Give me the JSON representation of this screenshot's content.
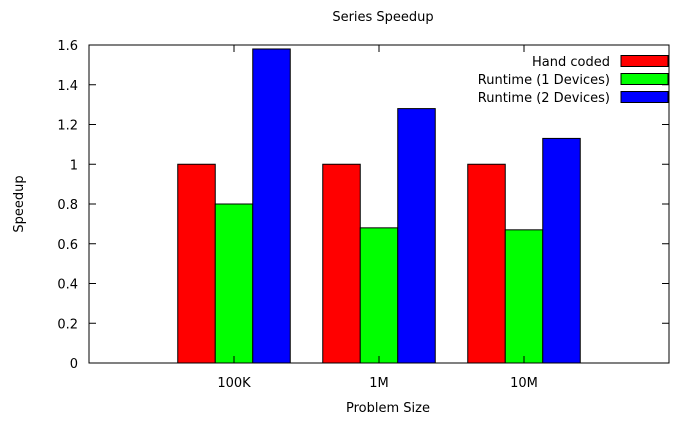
{
  "chart_data": {
    "type": "bar",
    "title": "Series Speedup",
    "xlabel": "Problem Size",
    "ylabel": "Speedup",
    "categories": [
      "100K",
      "1M",
      "10M"
    ],
    "ylim": [
      0,
      1.6
    ],
    "yticks": [
      0,
      0.2,
      0.4,
      0.6,
      0.8,
      1,
      1.2,
      1.4,
      1.6
    ],
    "ytick_labels": [
      "0",
      "0.2",
      "0.4",
      "0.6",
      "0.8",
      "1",
      "1.2",
      "1.4",
      "1.6"
    ],
    "grid": false,
    "legend_position": "top-right",
    "series": [
      {
        "name": "Hand coded",
        "color": "#ff0000",
        "values": [
          1.0,
          1.0,
          1.0
        ]
      },
      {
        "name": "Runtime (1 Devices)",
        "color": "#00ff00",
        "values": [
          0.8,
          0.68,
          0.67
        ]
      },
      {
        "name": "Runtime (2 Devices)",
        "color": "#0000ff",
        "values": [
          1.58,
          1.28,
          1.13
        ]
      }
    ]
  }
}
